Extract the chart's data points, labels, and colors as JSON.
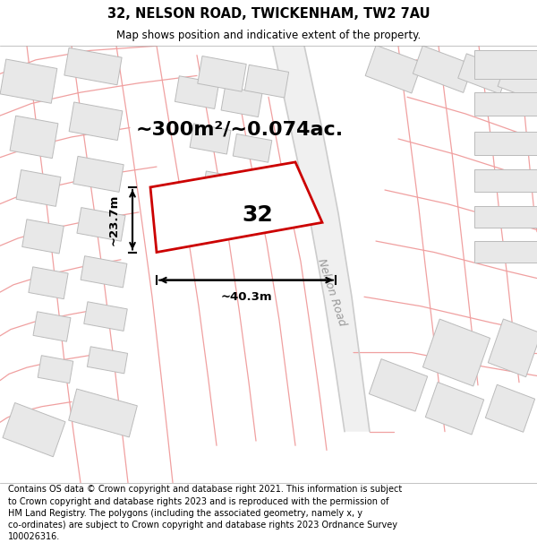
{
  "title": "32, NELSON ROAD, TWICKENHAM, TW2 7AU",
  "subtitle": "Map shows position and indicative extent of the property.",
  "footer": "Contains OS data © Crown copyright and database right 2021. This information is subject\nto Crown copyright and database rights 2023 and is reproduced with the permission of\nHM Land Registry. The polygons (including the associated geometry, namely x, y\nco-ordinates) are subject to Crown copyright and database rights 2023 Ordnance Survey\n100026316.",
  "map_bg": "#ffffff",
  "building_fc": "#e8e8e8",
  "building_ec": "#bbbbbb",
  "road_color": "#f0a0a0",
  "road_center_color": "#d0d0d0",
  "highlight_edge": "#cc0000",
  "highlight_face": "#ffffff",
  "area_text": "~300m²/~0.074ac.",
  "width_text": "~40.3m",
  "height_text": "~23.7m",
  "number_text": "32",
  "road_label": "Nelson Road",
  "title_fontsize": 10.5,
  "subtitle_fontsize": 8.5,
  "footer_fontsize": 7.0,
  "area_fontsize": 16,
  "dim_fontsize": 9.5,
  "num_fontsize": 18,
  "road_label_fontsize": 9
}
